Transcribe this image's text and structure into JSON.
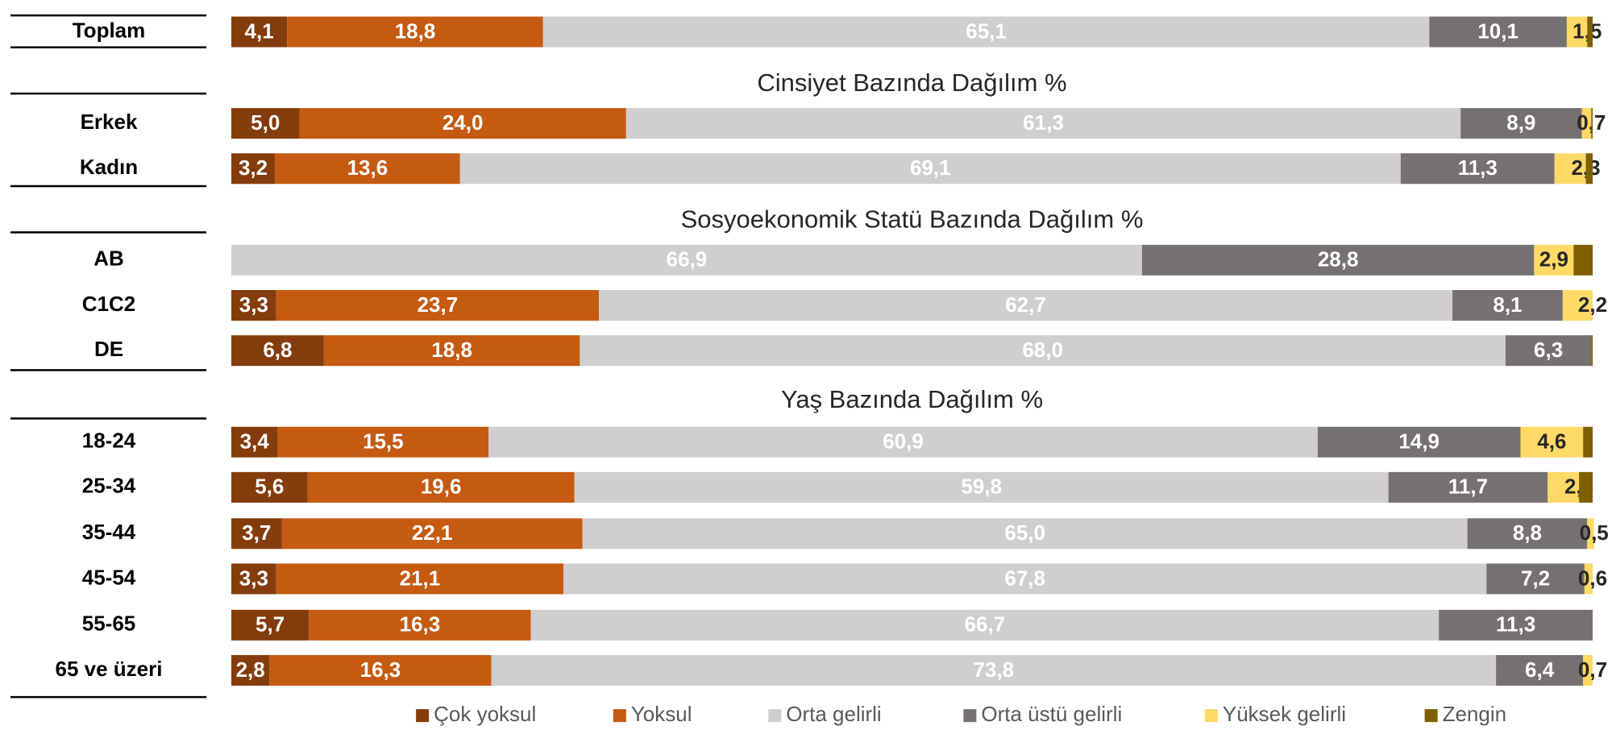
{
  "chart_data": {
    "type": "stacked-bar-h",
    "xlim": [
      0,
      100
    ],
    "series": [
      {
        "name": "Çok yoksul",
        "color": "#843c0c"
      },
      {
        "name": "Yoksul",
        "color": "#c55a11"
      },
      {
        "name": "Orta gelirli",
        "color": "#d0cece"
      },
      {
        "name": "Orta üstü gelirli",
        "color": "#767171"
      },
      {
        "name": "Yüksek gelirli",
        "color": "#ffd966"
      },
      {
        "name": "Zengin",
        "color": "#7f6000"
      }
    ],
    "panels": [
      {
        "categories": [
          "Toplam"
        ],
        "series": [
          {
            "values": [
              4.1
            ],
            "value_labels": [
              "4,1"
            ]
          },
          {
            "values": [
              18.8
            ],
            "value_labels": [
              "18,8"
            ]
          },
          {
            "values": [
              65.1
            ],
            "value_labels": [
              "65,1"
            ]
          },
          {
            "values": [
              10.1
            ],
            "value_labels": [
              "10,1"
            ]
          },
          {
            "values": [
              1.5
            ],
            "value_labels": [
              "1,5"
            ]
          },
          {
            "values": [
              0.4
            ],
            "value_labels": [
              null
            ]
          }
        ]
      },
      {
        "title": "Cinsiyet Bazında Dağılım %",
        "categories": [
          "Erkek",
          "Kadın"
        ],
        "series": [
          {
            "values": [
              5.0,
              3.2
            ],
            "value_labels": [
              "5,0",
              "3,2"
            ]
          },
          {
            "values": [
              24.0,
              13.6
            ],
            "value_labels": [
              "24,0",
              "13,6"
            ]
          },
          {
            "values": [
              61.3,
              69.1
            ],
            "value_labels": [
              "61,3",
              "69,1"
            ]
          },
          {
            "values": [
              8.9,
              11.3
            ],
            "value_labels": [
              "8,9",
              "11,3"
            ]
          },
          {
            "values": [
              0.7,
              2.3
            ],
            "value_labels": [
              "0,7",
              "2,3"
            ]
          },
          {
            "values": [
              0.1,
              0.5
            ],
            "value_labels": [
              null,
              null
            ]
          }
        ]
      },
      {
        "title": "Sosyoekonomik Statü Bazında Dağılım %",
        "categories": [
          "AB",
          "C1C2",
          "DE"
        ],
        "series": [
          {
            "values": [
              null,
              3.3,
              6.8
            ],
            "value_labels": [
              null,
              "3,3",
              "6,8"
            ]
          },
          {
            "values": [
              null,
              23.7,
              18.8
            ],
            "value_labels": [
              null,
              "23,7",
              "18,8"
            ]
          },
          {
            "values": [
              66.9,
              62.7,
              68.0
            ],
            "value_labels": [
              "66,9",
              "62,7",
              "68,0"
            ]
          },
          {
            "values": [
              28.8,
              8.1,
              6.3
            ],
            "value_labels": [
              "28,8",
              "8,1",
              "6,3"
            ]
          },
          {
            "values": [
              2.9,
              2.2,
              null
            ],
            "value_labels": [
              "2,9",
              "2,2",
              null
            ]
          },
          {
            "values": [
              1.4,
              null,
              0.1
            ],
            "value_labels": [
              null,
              null,
              null
            ]
          }
        ]
      },
      {
        "title": "Yaş Bazında Dağılım %",
        "categories": [
          "18-24",
          "25-34",
          "35-44",
          "45-54",
          "55-65",
          "65 ve üzeri"
        ],
        "series": [
          {
            "values": [
              3.4,
              5.6,
              3.7,
              3.3,
              5.7,
              2.8
            ],
            "value_labels": [
              "3,4",
              "5,6",
              "3,7",
              "3,3",
              "5,7",
              "2,8"
            ]
          },
          {
            "values": [
              15.5,
              19.6,
              22.1,
              21.1,
              16.3,
              16.3
            ],
            "value_labels": [
              "15,5",
              "19,6",
              "22,1",
              "21,1",
              "16,3",
              "16,3"
            ]
          },
          {
            "values": [
              60.9,
              59.8,
              65.0,
              67.8,
              66.7,
              73.8
            ],
            "value_labels": [
              "60,9",
              "59,8",
              "65,0",
              "67,8",
              "66,7",
              "73,8"
            ]
          },
          {
            "values": [
              14.9,
              11.7,
              8.8,
              7.2,
              11.3,
              6.4
            ],
            "value_labels": [
              "14,9",
              "11,7",
              "8,8",
              "7,2",
              "11,3",
              "6,4"
            ]
          },
          {
            "values": [
              4.6,
              2.3,
              0.5,
              0.6,
              null,
              0.7
            ],
            "value_labels": [
              "4,6",
              "2,3",
              "0,5",
              "0,6",
              null,
              "0,7"
            ]
          },
          {
            "values": [
              0.7,
              1.0,
              null,
              null,
              null,
              null
            ],
            "value_labels": [
              null,
              null,
              null,
              null,
              null,
              null
            ]
          }
        ]
      }
    ]
  }
}
